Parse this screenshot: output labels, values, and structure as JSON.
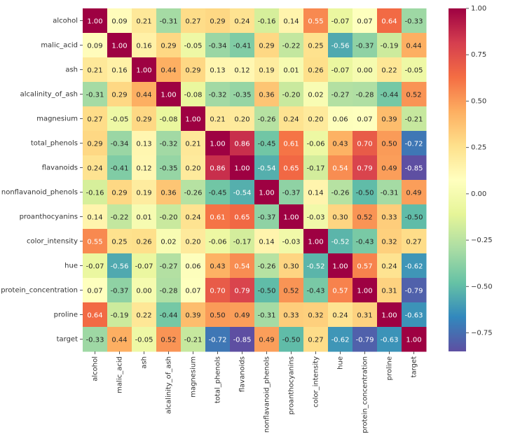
{
  "chart_data": {
    "type": "heatmap",
    "xcategories": [
      "alcohol",
      "malic_acid",
      "ash",
      "alcalinity_of_ash",
      "magnesium",
      "total_phenols",
      "flavanoids",
      "nonflavanoid_phenols",
      "proanthocyanins",
      "color_intensity",
      "hue",
      "protein_concentration",
      "proline",
      "target"
    ],
    "ycategories": [
      "alcohol",
      "malic_acid",
      "ash",
      "alcalinity_of_ash",
      "magnesium",
      "total_phenols",
      "flavanoids",
      "nonflavanoid_phenols",
      "proanthocyanins",
      "color_intensity",
      "hue",
      "protein_concentration",
      "proline",
      "target"
    ],
    "values": [
      [
        1.0,
        0.09,
        0.21,
        -0.31,
        0.27,
        0.29,
        0.24,
        -0.16,
        0.14,
        0.55,
        -0.07,
        0.07,
        0.64,
        -0.33
      ],
      [
        0.09,
        1.0,
        0.16,
        0.29,
        -0.05,
        -0.34,
        -0.41,
        0.29,
        -0.22,
        0.25,
        -0.56,
        -0.37,
        -0.19,
        0.44
      ],
      [
        0.21,
        0.16,
        1.0,
        0.44,
        0.29,
        0.13,
        0.12,
        0.19,
        0.01,
        0.26,
        -0.07,
        0.0,
        0.22,
        -0.05
      ],
      [
        -0.31,
        0.29,
        0.44,
        1.0,
        -0.08,
        -0.32,
        -0.35,
        0.36,
        -0.2,
        0.02,
        -0.27,
        -0.28,
        -0.44,
        0.52
      ],
      [
        0.27,
        -0.05,
        0.29,
        -0.08,
        1.0,
        0.21,
        0.2,
        -0.26,
        0.24,
        0.2,
        0.06,
        0.07,
        0.39,
        -0.21
      ],
      [
        0.29,
        -0.34,
        0.13,
        -0.32,
        0.21,
        1.0,
        0.86,
        -0.45,
        0.61,
        -0.06,
        0.43,
        0.7,
        0.5,
        -0.72
      ],
      [
        0.24,
        -0.41,
        0.12,
        -0.35,
        0.2,
        0.86,
        1.0,
        -0.54,
        0.65,
        -0.17,
        0.54,
        0.79,
        0.49,
        -0.85
      ],
      [
        -0.16,
        0.29,
        0.19,
        0.36,
        -0.26,
        -0.45,
        -0.54,
        1.0,
        -0.37,
        0.14,
        -0.26,
        -0.5,
        -0.31,
        0.49
      ],
      [
        0.14,
        -0.22,
        0.01,
        -0.2,
        0.24,
        0.61,
        0.65,
        -0.37,
        1.0,
        -0.03,
        0.3,
        0.52,
        0.33,
        -0.5
      ],
      [
        0.55,
        0.25,
        0.26,
        0.02,
        0.2,
        -0.06,
        -0.17,
        0.14,
        -0.03,
        1.0,
        -0.52,
        -0.43,
        0.32,
        0.27
      ],
      [
        -0.07,
        -0.56,
        -0.07,
        -0.27,
        0.06,
        0.43,
        0.54,
        -0.26,
        0.3,
        -0.52,
        1.0,
        0.57,
        0.24,
        -0.62
      ],
      [
        0.07,
        -0.37,
        0.0,
        -0.28,
        0.07,
        0.7,
        0.79,
        -0.5,
        0.52,
        -0.43,
        0.57,
        1.0,
        0.31,
        -0.79
      ],
      [
        0.64,
        -0.19,
        0.22,
        -0.44,
        0.39,
        0.5,
        0.49,
        -0.31,
        0.33,
        0.32,
        0.24,
        0.31,
        1.0,
        -0.63
      ],
      [
        -0.33,
        0.44,
        -0.05,
        0.52,
        -0.21,
        -0.72,
        -0.85,
        0.49,
        -0.5,
        0.27,
        -0.62,
        -0.79,
        -0.63,
        1.0
      ]
    ],
    "value_labels": [
      [
        "1.00",
        "0.09",
        "0.21",
        "-0.31",
        "0.27",
        "0.29",
        "0.24",
        "-0.16",
        "0.14",
        "0.55",
        "-0.07",
        "0.07",
        "0.64",
        "-0.33"
      ],
      [
        "0.09",
        "1.00",
        "0.16",
        "0.29",
        "-0.05",
        "-0.34",
        "-0.41",
        "0.29",
        "-0.22",
        "0.25",
        "-0.56",
        "-0.37",
        "-0.19",
        "0.44"
      ],
      [
        "0.21",
        "0.16",
        "1.00",
        "0.44",
        "0.29",
        "0.13",
        "0.12",
        "0.19",
        "0.01",
        "0.26",
        "-0.07",
        "0.00",
        "0.22",
        "-0.05"
      ],
      [
        "-0.31",
        "0.29",
        "0.44",
        "1.00",
        "-0.08",
        "-0.32",
        "-0.35",
        "0.36",
        "-0.20",
        "0.02",
        "-0.27",
        "-0.28",
        "-0.44",
        "0.52"
      ],
      [
        "0.27",
        "-0.05",
        "0.29",
        "-0.08",
        "1.00",
        "0.21",
        "0.20",
        "-0.26",
        "0.24",
        "0.20",
        "0.06",
        "0.07",
        "0.39",
        "-0.21"
      ],
      [
        "0.29",
        "-0.34",
        "0.13",
        "-0.32",
        "0.21",
        "1.00",
        "0.86",
        "-0.45",
        "0.61",
        "-0.06",
        "0.43",
        "0.70",
        "0.50",
        "-0.72"
      ],
      [
        "0.24",
        "-0.41",
        "0.12",
        "-0.35",
        "0.20",
        "0.86",
        "1.00",
        "-0.54",
        "0.65",
        "-0.17",
        "0.54",
        "0.79",
        "0.49",
        "-0.85"
      ],
      [
        "-0.16",
        "0.29",
        "0.19",
        "0.36",
        "-0.26",
        "-0.45",
        "-0.54",
        "1.00",
        "-0.37",
        "0.14",
        "-0.26",
        "-0.50",
        "-0.31",
        "0.49"
      ],
      [
        "0.14",
        "-0.22",
        "0.01",
        "-0.20",
        "0.24",
        "0.61",
        "0.65",
        "-0.37",
        "1.00",
        "-0.03",
        "0.30",
        "0.52",
        "0.33",
        "-0.50"
      ],
      [
        "0.55",
        "0.25",
        "0.26",
        "0.02",
        "0.20",
        "-0.06",
        "-0.17",
        "0.14",
        "-0.03",
        "1.00",
        "-0.52",
        "-0.43",
        "0.32",
        "0.27"
      ],
      [
        "-0.07",
        "-0.56",
        "-0.07",
        "-0.27",
        "0.06",
        "0.43",
        "0.54",
        "-0.26",
        "0.30",
        "-0.52",
        "1.00",
        "0.57",
        "0.24",
        "-0.62"
      ],
      [
        "0.07",
        "-0.37",
        "0.00",
        "-0.28",
        "0.07",
        "0.70",
        "0.79",
        "-0.50",
        "0.52",
        "-0.43",
        "0.57",
        "1.00",
        "0.31",
        "-0.79"
      ],
      [
        "0.64",
        "-0.19",
        "0.22",
        "-0.44",
        "0.39",
        "0.50",
        "0.49",
        "-0.31",
        "0.33",
        "0.32",
        "0.24",
        "0.31",
        "1.00",
        "-0.63"
      ],
      [
        "-0.33",
        "0.44",
        "-0.05",
        "0.52",
        "-0.21",
        "-0.72",
        "-0.85",
        "0.49",
        "-0.50",
        "0.27",
        "-0.62",
        "-0.79",
        "-0.63",
        "1.00"
      ]
    ],
    "zlim": [
      -0.85,
      1.0
    ],
    "zticks": [
      {
        "value": 1.0,
        "label": "1.00"
      },
      {
        "value": 0.75,
        "label": "0.75"
      },
      {
        "value": 0.5,
        "label": "0.50"
      },
      {
        "value": 0.25,
        "label": "0.25"
      },
      {
        "value": 0.0,
        "label": "0.00"
      },
      {
        "value": -0.25,
        "label": "−0.25"
      },
      {
        "value": -0.5,
        "label": "−0.50"
      },
      {
        "value": -0.75,
        "label": "−0.75"
      }
    ],
    "colors": [
      "#5e4fa2",
      "#3288bd",
      "#66c2a5",
      "#abdda4",
      "#e6f598",
      "#ffffbf",
      "#fee08b",
      "#fdae61",
      "#f46d43",
      "#d53e4f",
      "#9e0142"
    ]
  }
}
